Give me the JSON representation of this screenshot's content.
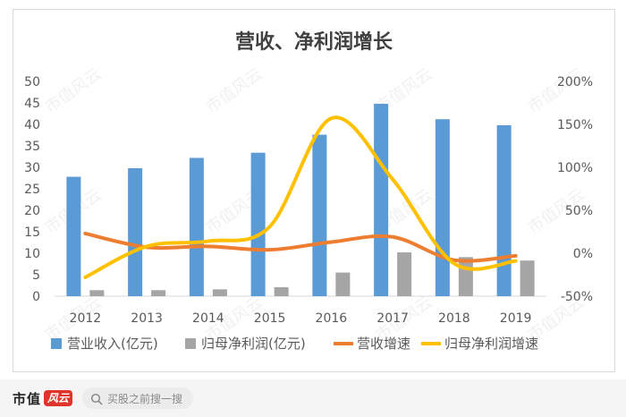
{
  "chart_data": {
    "type": "bar",
    "title": "营收、净利润增长",
    "categories": [
      "2012",
      "2013",
      "2014",
      "2015",
      "2016",
      "2017",
      "2018",
      "2019"
    ],
    "y_left": {
      "ticks": [
        "0",
        "5",
        "10",
        "15",
        "20",
        "25",
        "30",
        "35",
        "40",
        "45",
        "50"
      ],
      "ylim": [
        0,
        50
      ]
    },
    "y_right": {
      "ticks": [
        "-50%",
        "0%",
        "50%",
        "100%",
        "150%",
        "200%"
      ],
      "ylim": [
        -50,
        200
      ]
    },
    "series": [
      {
        "name": "营业收入(亿元)",
        "kind": "bar",
        "axis": "left",
        "color": "#5b9bd5",
        "values": [
          27.8,
          29.8,
          32.2,
          33.4,
          37.6,
          44.8,
          41.2,
          39.8
        ]
      },
      {
        "name": "归母净利润(亿元)",
        "kind": "bar",
        "axis": "left",
        "color": "#a5a5a5",
        "values": [
          1.4,
          1.4,
          1.6,
          2.1,
          5.5,
          10.2,
          9.1,
          8.3
        ]
      },
      {
        "name": "营收增速",
        "kind": "line",
        "axis": "right",
        "color": "#ed7d31",
        "values": [
          23,
          7,
          8,
          4,
          13,
          19,
          -8,
          -3
        ]
      },
      {
        "name": "归母净利润增速",
        "kind": "line",
        "axis": "right",
        "color": "#ffc000",
        "values": [
          -28,
          8,
          14,
          31,
          157,
          86,
          -12,
          -9
        ]
      }
    ],
    "legend_position": "bottom",
    "grid": false
  },
  "watermark": "市值风云",
  "footer": {
    "brand_text": "市值",
    "brand_badge": "风云",
    "search_text": "买股之前搜一搜"
  }
}
